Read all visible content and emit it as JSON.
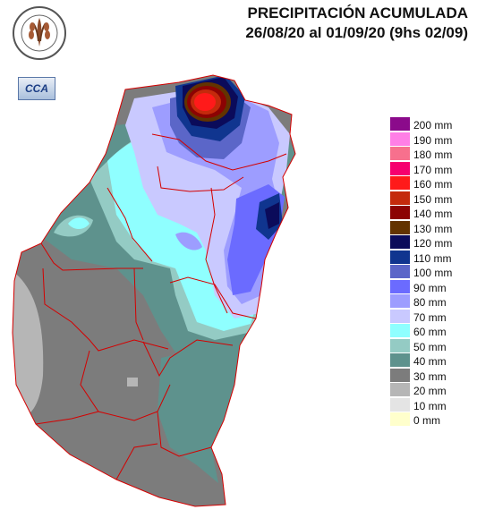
{
  "title": {
    "line1": "PRECIPITACIÓN ACUMULADA",
    "line2": "26/08/20 al 01/09/20 (9hs 02/09)"
  },
  "logos": {
    "bolsa_seal_text": "BOLSA DE CEREALES DE ENTRE RIOS",
    "cca_text": "CCA"
  },
  "legend": [
    {
      "label": "200 mm",
      "color": "#8b0a8b"
    },
    {
      "label": "190 mm",
      "color": "#ff7fe6"
    },
    {
      "label": "180 mm",
      "color": "#f7708d"
    },
    {
      "label": "170 mm",
      "color": "#f6006f"
    },
    {
      "label": "160 mm",
      "color": "#ff1a1a"
    },
    {
      "label": "150 mm",
      "color": "#c42a0c"
    },
    {
      "label": "140 mm",
      "color": "#8c0303"
    },
    {
      "label": "130 mm",
      "color": "#633300"
    },
    {
      "label": "120 mm",
      "color": "#0b0b5a"
    },
    {
      "label": "110 mm",
      "color": "#10358f"
    },
    {
      "label": "100 mm",
      "color": "#5b66c8"
    },
    {
      "label": "90 mm",
      "color": "#6b6bff"
    },
    {
      "label": "80 mm",
      "color": "#9d9dff"
    },
    {
      "label": "70 mm",
      "color": "#c9c9ff"
    },
    {
      "label": "60 mm",
      "color": "#8fffff"
    },
    {
      "label": "50 mm",
      "color": "#94cbc4"
    },
    {
      "label": "40 mm",
      "color": "#5e928d"
    },
    {
      "label": "30 mm",
      "color": "#7c7c7c"
    },
    {
      "label": "20 mm",
      "color": "#b6b6b6"
    },
    {
      "label": "10 mm",
      "color": "#e4e4e4"
    },
    {
      "label": "0 mm",
      "color": "#ffffcc"
    }
  ]
}
